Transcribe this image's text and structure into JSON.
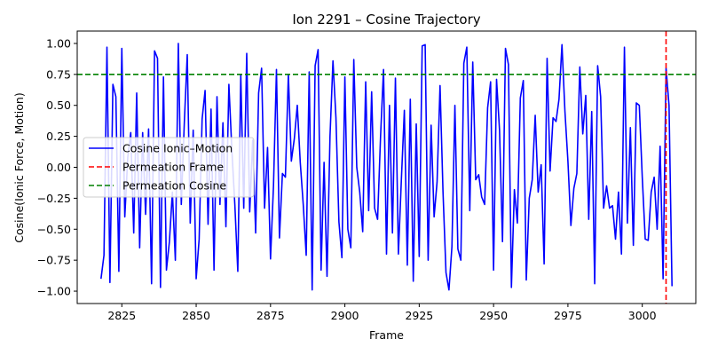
{
  "chart_data": {
    "type": "line",
    "title": "Ion 2291 – Cosine Trajectory",
    "xlabel": "Frame",
    "ylabel": "Cosine(Ionic Force, Motion)",
    "xlim": [
      2810,
      3018
    ],
    "ylim": [
      -1.1,
      1.1
    ],
    "xticks": [
      2825,
      2850,
      2875,
      2900,
      2925,
      2950,
      2975,
      3000
    ],
    "yticks": [
      -1.0,
      -0.75,
      -0.5,
      -0.25,
      0.0,
      0.25,
      0.5,
      0.75,
      1.0
    ],
    "ytick_labels": [
      "−1.00",
      "−0.75",
      "−0.50",
      "−0.25",
      "0.00",
      "0.25",
      "0.50",
      "0.75",
      "1.00"
    ],
    "grid": false,
    "legend_position": "center-left",
    "series": [
      {
        "name": "Cosine Ionic–Motion",
        "color": "#0000ff",
        "x_start": 2818,
        "x_step": 1,
        "values": [
          -0.9,
          -0.71,
          0.97,
          -0.93,
          0.67,
          0.57,
          -0.84,
          0.96,
          -0.4,
          0.08,
          0.28,
          -0.53,
          0.6,
          -0.65,
          0.28,
          -0.38,
          0.31,
          -0.94,
          0.94,
          0.88,
          -0.97,
          0.73,
          -0.83,
          -0.6,
          -0.2,
          -0.75,
          1.0,
          -0.3,
          0.35,
          0.91,
          -0.45,
          0.3,
          -0.9,
          -0.58,
          0.39,
          0.62,
          -0.46,
          0.47,
          -0.83,
          0.57,
          -0.3,
          0.36,
          -0.48,
          0.67,
          0.14,
          -0.3,
          -0.84,
          0.75,
          -0.33,
          0.92,
          -0.36,
          0.22,
          -0.53,
          0.6,
          0.8,
          -0.33,
          0.16,
          -0.74,
          -0.15,
          0.79,
          -0.57,
          -0.05,
          -0.08,
          0.75,
          0.05,
          0.23,
          0.5,
          0.04,
          -0.3,
          -0.71,
          0.77,
          -0.99,
          0.82,
          0.95,
          -0.83,
          0.04,
          -0.88,
          0.25,
          0.86,
          0.4,
          -0.44,
          -0.73,
          0.73,
          -0.5,
          -0.65,
          0.87,
          0.0,
          -0.2,
          -0.52,
          0.69,
          -0.35,
          0.61,
          -0.33,
          -0.42,
          0.25,
          0.79,
          -0.7,
          0.5,
          -0.53,
          0.72,
          -0.7,
          -0.1,
          0.46,
          -0.79,
          0.55,
          -0.92,
          0.35,
          -0.72,
          0.98,
          0.99,
          -0.75,
          0.34,
          -0.4,
          -0.12,
          0.66,
          -0.2,
          -0.85,
          -0.99,
          -0.64,
          0.5,
          -0.66,
          -0.75,
          0.84,
          0.97,
          -0.35,
          0.85,
          -0.1,
          -0.06,
          -0.24,
          -0.3,
          0.48,
          0.69,
          -0.83,
          0.71,
          0.3,
          -0.6,
          0.96,
          0.83,
          -0.97,
          -0.18,
          -0.45,
          0.56,
          0.7,
          -0.91,
          -0.25,
          -0.1,
          0.42,
          -0.2,
          0.02,
          -0.78,
          0.88,
          -0.03,
          0.4,
          0.37,
          0.55,
          0.99,
          0.45,
          0.05,
          -0.47,
          -0.17,
          -0.05,
          0.81,
          0.27,
          0.58,
          -0.42,
          0.45,
          -0.94,
          0.82,
          0.57,
          -0.33,
          -0.15,
          -0.33,
          -0.31,
          -0.58,
          -0.2,
          -0.7,
          0.97,
          -0.45,
          0.32,
          -0.63,
          0.52,
          0.5,
          -0.08,
          -0.58,
          -0.59,
          -0.2,
          -0.08,
          -0.5,
          0.17,
          -0.9,
          0.8,
          0.5,
          -0.96
        ]
      },
      {
        "name": "Permeation Frame",
        "color": "#ff0000",
        "style": "dashed",
        "orientation": "vertical",
        "x": 3008
      },
      {
        "name": "Permeation Cosine",
        "color": "#008000",
        "style": "dashed",
        "orientation": "horizontal",
        "y": 0.75
      }
    ]
  }
}
